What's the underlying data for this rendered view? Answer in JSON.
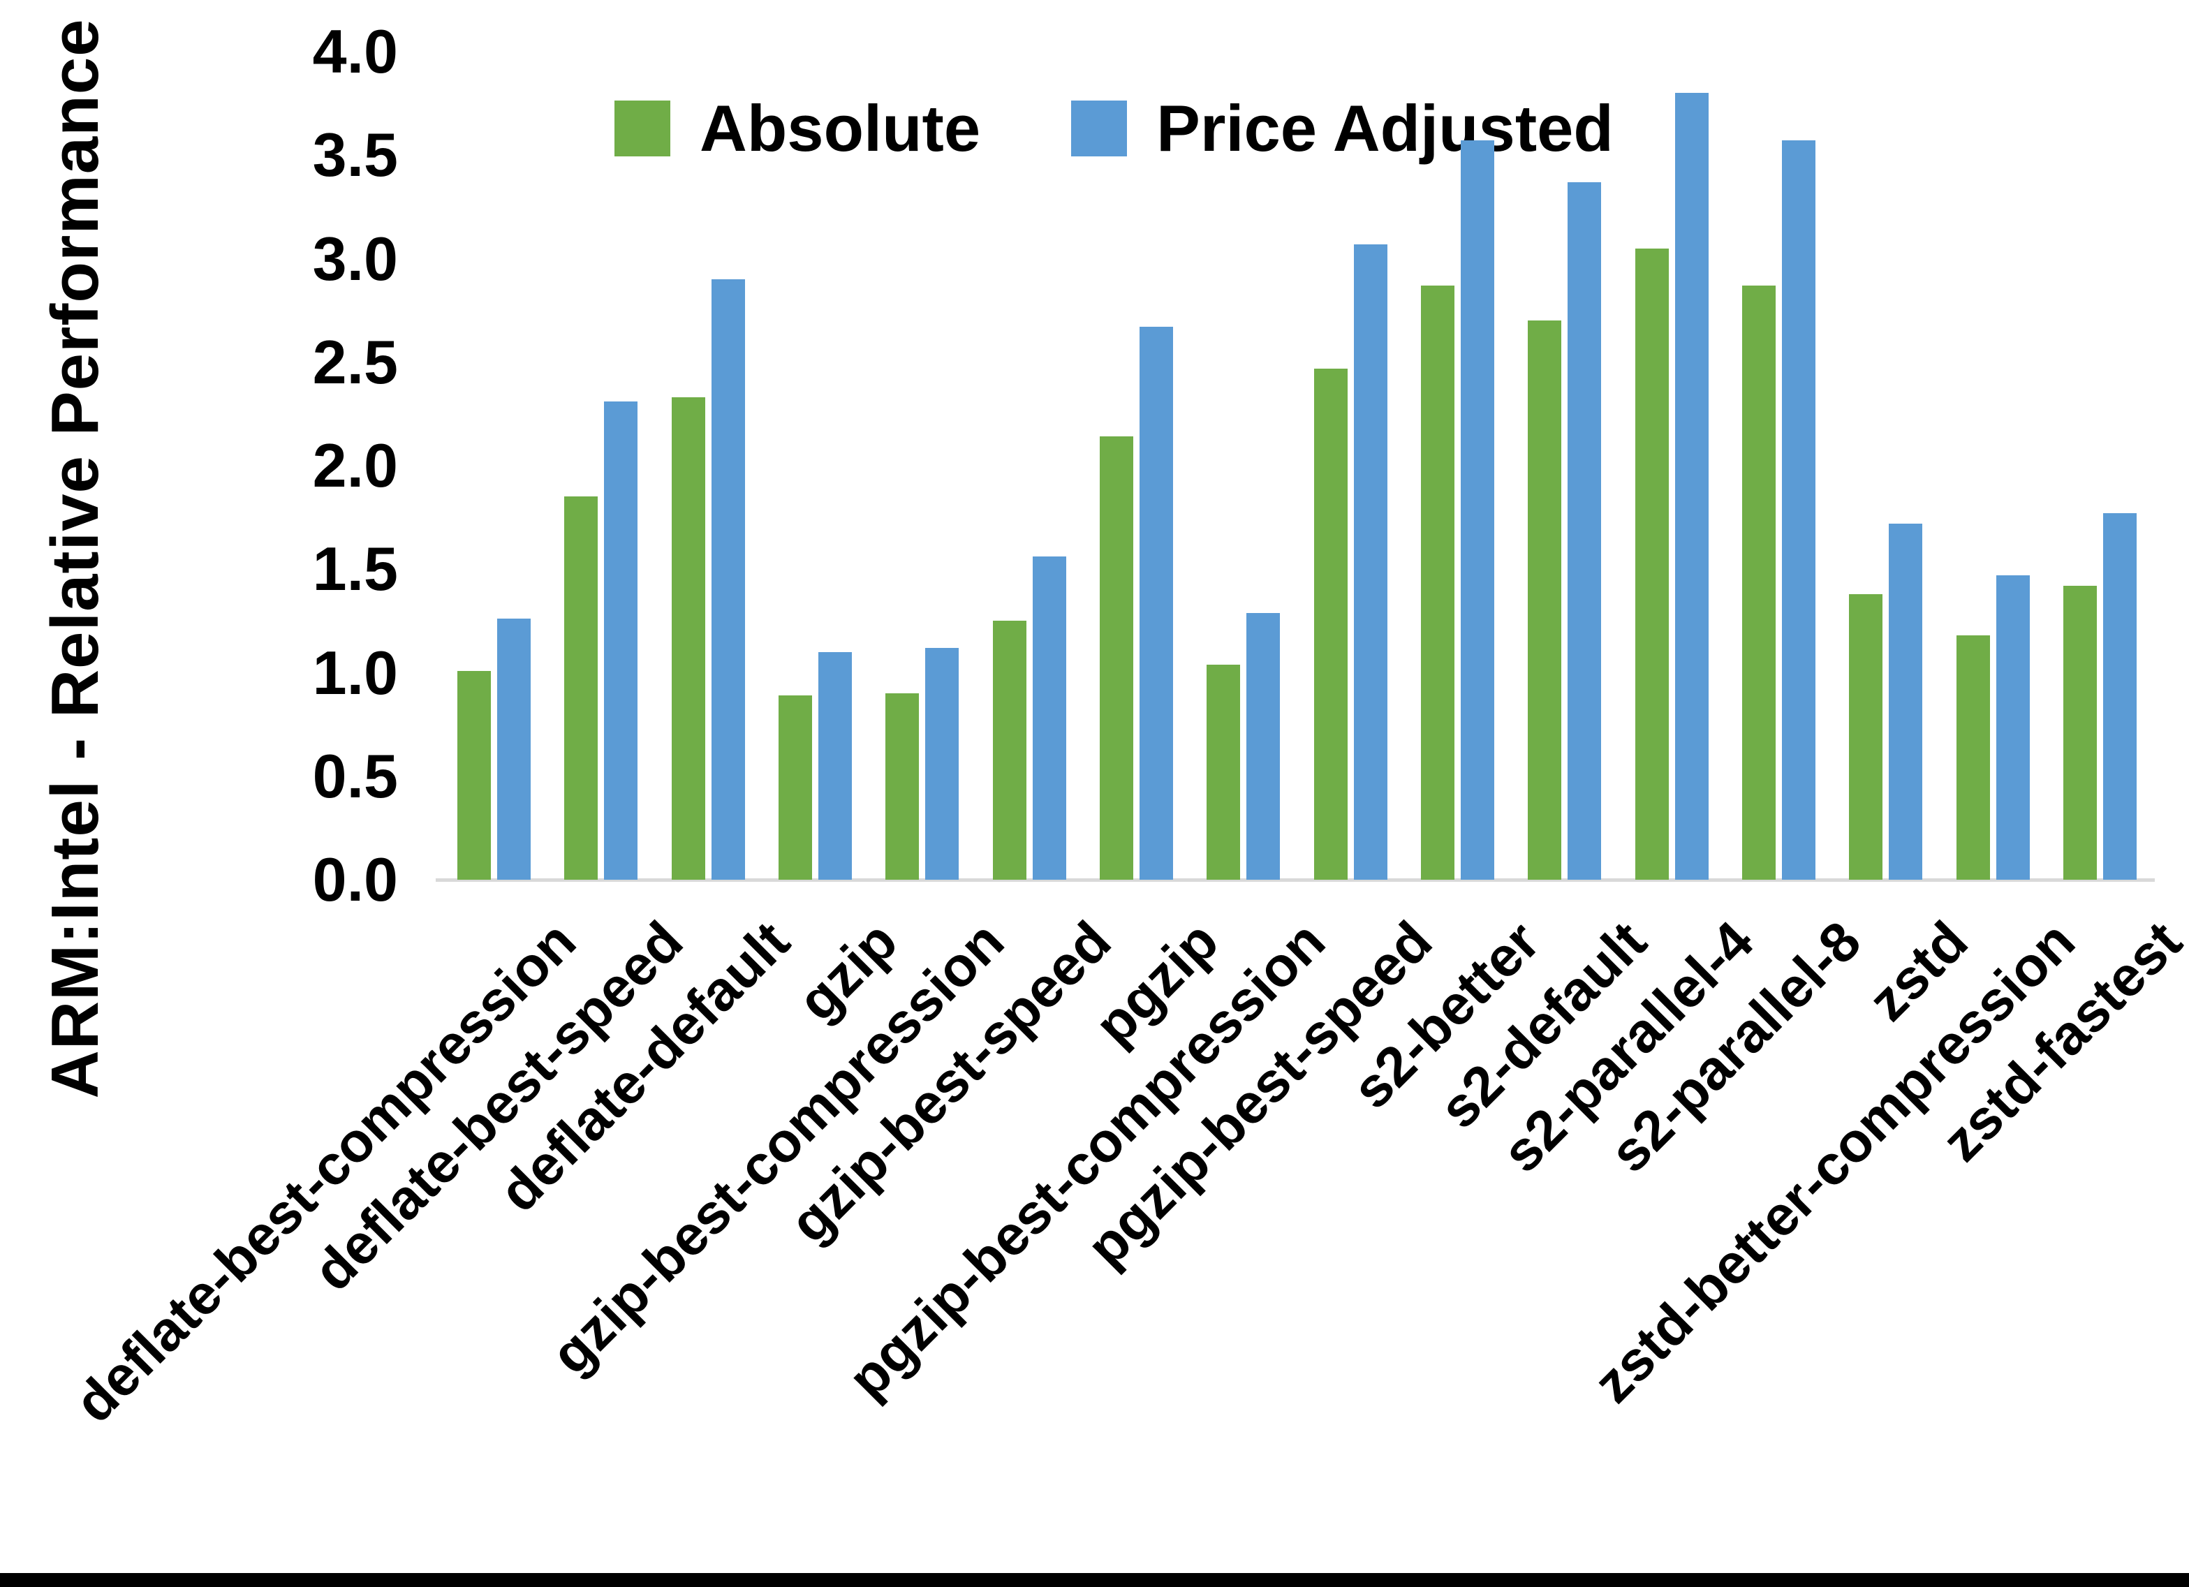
{
  "figure": {
    "background": "#FFFFFF",
    "bottom_edge_bar_color": "#000000",
    "axis_line_color": "#D9D9D9",
    "text_color": "#000000"
  },
  "chart_data": {
    "type": "bar",
    "title": "",
    "xlabel": "",
    "ylabel": "ARM:Intel - Relative Performance",
    "ylim": [
      0.0,
      4.0
    ],
    "ytick_labels": [
      "0.0",
      "0.5",
      "1.0",
      "1.5",
      "2.0",
      "2.5",
      "3.0",
      "3.5",
      "4.0"
    ],
    "grid": "off",
    "legend_position": "top-center",
    "categories": [
      "deflate-best-compression",
      "deflate-best-speed",
      "deflate-default",
      "gzip",
      "gzip-best-compression",
      "gzip-best-speed",
      "pgzip",
      "pgzip-best-compression",
      "pgzip-best-speed",
      "s2-better",
      "s2-default",
      "s2-parallel-4",
      "s2-parallel-8",
      "zstd",
      "zstd-better-compression",
      "zstd-fastest"
    ],
    "series": [
      {
        "name": "Absolute",
        "color": "#70AD47",
        "values": [
          1.01,
          1.85,
          2.33,
          0.89,
          0.9,
          1.25,
          2.14,
          1.04,
          2.47,
          2.87,
          2.7,
          3.05,
          2.87,
          1.38,
          1.18,
          1.42
        ]
      },
      {
        "name": "Price Adjusted",
        "color": "#5B9BD5",
        "values": [
          1.26,
          2.31,
          2.9,
          1.1,
          1.12,
          1.56,
          2.67,
          1.29,
          3.07,
          3.57,
          3.37,
          3.8,
          3.57,
          1.72,
          1.47,
          1.77
        ]
      }
    ]
  }
}
